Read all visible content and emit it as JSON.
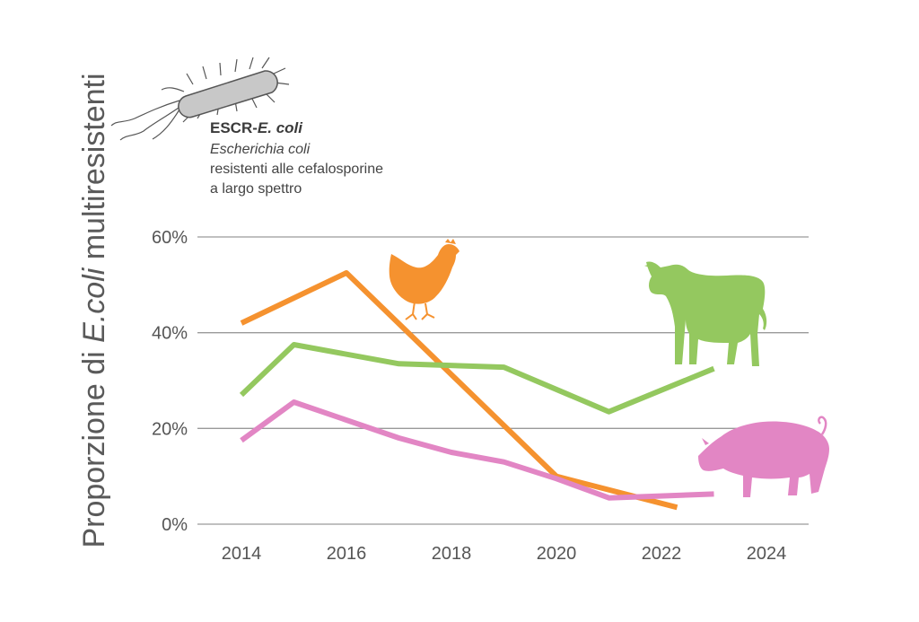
{
  "colors": {
    "chicken": "#f5922f",
    "cattle": "#94c85f",
    "pig": "#e286c4",
    "grid": "#9a9a9a",
    "text": "#555555",
    "bacterium_fill": "#c8c8c8",
    "bacterium_stroke": "#555555"
  },
  "icons": [
    "bacterium-icon",
    "chicken-icon",
    "cow-icon",
    "pig-icon"
  ],
  "legend": {
    "title_prefix": "ESCR-",
    "title_italic": "E. coli",
    "line2": "Escherichia coli",
    "line3": "resistenti alle cefalosporine",
    "line4": "a largo spettro"
  },
  "chart_data": {
    "type": "line",
    "ylabel_prefix": "Proporzione di ",
    "ylabel_italic": "E.coli",
    "ylabel_suffix": " multiresistenti",
    "xlabel": "",
    "xlim": [
      2014,
      2024
    ],
    "ylim": [
      0,
      60
    ],
    "x_ticks": [
      "2014",
      "2016",
      "2018",
      "2020",
      "2022",
      "2024"
    ],
    "y_ticks": [
      "0%",
      "20%",
      "40%",
      "60%"
    ],
    "grid": true,
    "series": [
      {
        "key": "chicken",
        "x": [
          2014,
          2016,
          2020,
          2022.3
        ],
        "y": [
          42,
          52.5,
          10,
          3.5
        ]
      },
      {
        "key": "cattle",
        "x": [
          2014,
          2015,
          2017,
          2019,
          2021,
          2023
        ],
        "y": [
          27,
          37.5,
          33.5,
          32.8,
          23.5,
          32.5
        ]
      },
      {
        "key": "pig",
        "x": [
          2014,
          2015,
          2017,
          2018,
          2019,
          2020,
          2021,
          2023
        ],
        "y": [
          17.5,
          25.5,
          18,
          15,
          13,
          9.5,
          5.5,
          6.3
        ]
      }
    ]
  }
}
